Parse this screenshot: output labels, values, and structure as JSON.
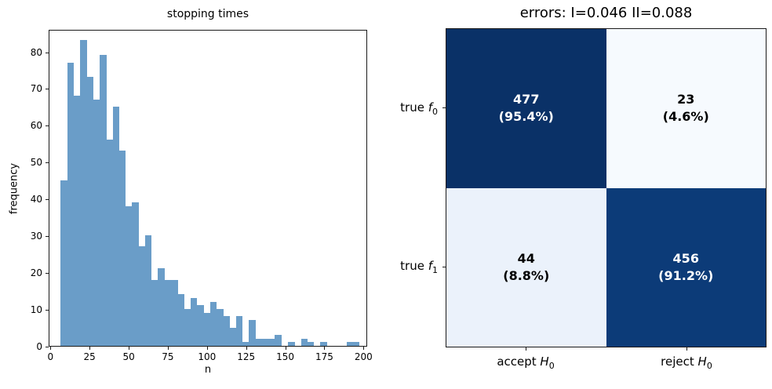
{
  "figure": {
    "background": "#ffffff"
  },
  "histogram": {
    "title": "stopping times",
    "xlabel": "n",
    "ylabel": "frequency",
    "bar_color": "#6a9dc8",
    "x_ticks": [
      0,
      25,
      50,
      75,
      100,
      125,
      150,
      175,
      200
    ],
    "y_ticks": [
      0,
      10,
      20,
      30,
      40,
      50,
      60,
      70,
      80
    ]
  },
  "matrix": {
    "title": "errors: I=0.046 II=0.088",
    "row_labels": [
      {
        "prefix": "true ",
        "var": "f",
        "sub": "0"
      },
      {
        "prefix": "true ",
        "var": "f",
        "sub": "1"
      }
    ],
    "col_labels": [
      {
        "prefix": "accept ",
        "var": "H",
        "sub": "0"
      },
      {
        "prefix": "reject ",
        "var": "H",
        "sub": "0"
      }
    ],
    "cells": [
      {
        "count": "477",
        "pct": "(95.4%)",
        "bg": "#0a3167",
        "fg": "#ffffff"
      },
      {
        "count": "23",
        "pct": "(4.6%)",
        "bg": "#f6fafe",
        "fg": "#000000"
      },
      {
        "count": "44",
        "pct": "(8.8%)",
        "bg": "#ebf2fb",
        "fg": "#000000"
      },
      {
        "count": "456",
        "pct": "(91.2%)",
        "bg": "#0c3b78",
        "fg": "#ffffff"
      }
    ]
  },
  "chart_data": [
    {
      "type": "bar",
      "subtype": "histogram",
      "title": "stopping times",
      "xlabel": "n",
      "ylabel": "frequency",
      "bin_start": 6,
      "bin_width": 4.15,
      "values": [
        45,
        77,
        68,
        83,
        73,
        67,
        79,
        56,
        65,
        53,
        38,
        39,
        27,
        30,
        18,
        21,
        18,
        18,
        14,
        10,
        13,
        11,
        9,
        12,
        10,
        8,
        5,
        8,
        1,
        7,
        2,
        2,
        2,
        3,
        0,
        1,
        0,
        2,
        1,
        0,
        1,
        0,
        0,
        0,
        1,
        1
      ],
      "x_ticks": [
        0,
        25,
        50,
        75,
        100,
        125,
        150,
        175,
        200
      ],
      "y_ticks": [
        0,
        10,
        20,
        30,
        40,
        50,
        60,
        70,
        80
      ],
      "xlim": [
        -1,
        202
      ],
      "ylim": [
        0,
        86
      ],
      "grid": false,
      "legend": null
    },
    {
      "type": "heatmap",
      "title": "errors: I=0.046 II=0.088",
      "rows": [
        "true f0",
        "true f1"
      ],
      "cols": [
        "accept H0",
        "reject H0"
      ],
      "values": [
        [
          477,
          23
        ],
        [
          44,
          456
        ]
      ],
      "percents": [
        [
          "95.4%",
          "4.6%"
        ],
        [
          "8.8%",
          "91.2%"
        ]
      ],
      "colormap": "Blues",
      "error_type_I": 0.046,
      "error_type_II": 0.088
    }
  ]
}
